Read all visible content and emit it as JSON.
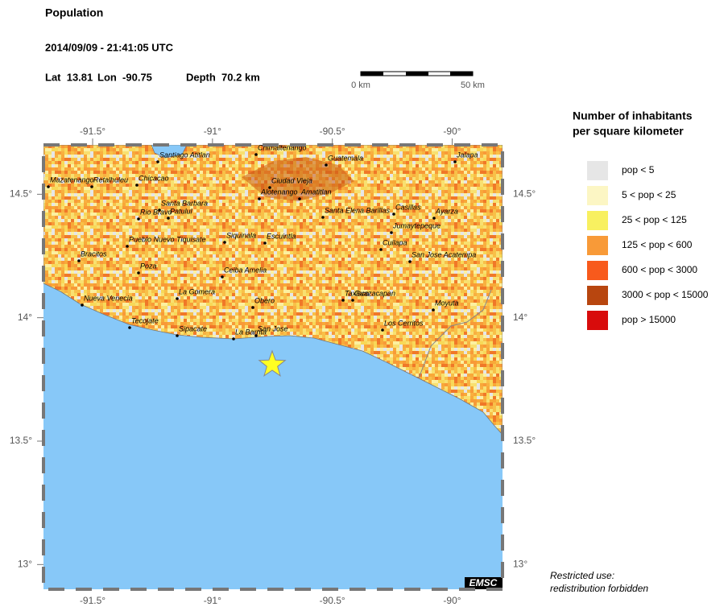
{
  "header": {
    "title": "Population",
    "datetime": "2014/09/09 - 21:41:05 UTC",
    "lat": "Lat  13.81",
    "lon": "Lon  -90.75",
    "depth": "Depth  70.2 km"
  },
  "scale_bar": {
    "start": "0 km",
    "end": "50 km"
  },
  "map": {
    "xlim": [
      -91.705,
      -89.79
    ],
    "ylim": [
      12.9,
      14.7
    ],
    "xticks": [
      {
        "value": -91.5,
        "label": "-91.5°"
      },
      {
        "value": -91,
        "label": "-91°"
      },
      {
        "value": -90.5,
        "label": "-90.5°"
      },
      {
        "value": -90,
        "label": "-90°"
      }
    ],
    "yticks": [
      {
        "value": 13,
        "label": "13°"
      },
      {
        "value": 13.5,
        "label": "13.5°"
      },
      {
        "value": 14,
        "label": "14°"
      },
      {
        "value": 14.5,
        "label": "14.5°"
      }
    ],
    "places": [
      "Chimaltenango",
      "Santiago Atitlan",
      "Guatemala",
      "Jalapa",
      "Mazatenango",
      "Retalhuleu",
      "Chicacao",
      "Ciudad Vieja",
      "Alotenango",
      "Amatitlan",
      "Santa Barbara",
      "Patulul",
      "Rio Bravo",
      "Santa Elena Barillas",
      "Casillas",
      "Jumaytepeque",
      "Ayarza",
      "Pueblo Nuevo Tiquisate",
      "Siquinala",
      "Escuintla",
      "Bracitos",
      "Cuilapa",
      "San Jose Acatempa",
      "Poza",
      "Ceiba Amelia",
      "La Gomera",
      "Nueva Venecia",
      "Taxisco",
      "Guazacapan",
      "Obero",
      "Moyuta",
      "Tecojate",
      "Sipacate",
      "La Barrita",
      "San Jose",
      "Los Cerritos"
    ]
  },
  "legend": {
    "title_line1": "Number of inhabitants",
    "title_line2": "per square kilometer",
    "items": [
      {
        "label": "pop < 5",
        "color": "#e6e6e6"
      },
      {
        "label": "5 < pop < 25",
        "color": "#fcf6c4"
      },
      {
        "label": "25 < pop < 125",
        "color": "#f8f060"
      },
      {
        "label": "125 < pop < 600",
        "color": "#f89a38"
      },
      {
        "label": "600 < pop < 3000",
        "color": "#f85a1c"
      },
      {
        "label": "3000 < pop < 15000",
        "color": "#b8460f"
      },
      {
        "label": "pop > 15000",
        "color": "#d80c0c"
      }
    ]
  },
  "logo": "EMSC",
  "notice": [
    "Restricted use:",
    "redistribution forbidden"
  ]
}
